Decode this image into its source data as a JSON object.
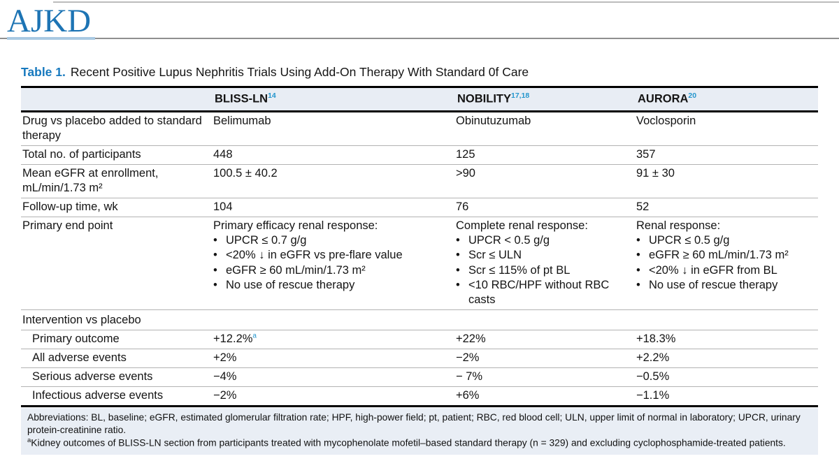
{
  "page": {
    "logo": "AJKD",
    "title_label": "Table 1.",
    "title_text": "Recent Positive Lupus Nephritis Trials Using Add-On Therapy With Standard 0f Care"
  },
  "table": {
    "columns": [
      {
        "text": "BLISS-LN",
        "sup": "14"
      },
      {
        "text": "NOBILITY",
        "sup": "17,18"
      },
      {
        "text": "AURORA",
        "sup": "20"
      }
    ],
    "rows": [
      {
        "type": "text",
        "label": "Drug vs placebo added to standard therapy",
        "cells": [
          {
            "text": "Belimumab"
          },
          {
            "text": "Obinutuzumab"
          },
          {
            "text": "Voclosporin"
          }
        ]
      },
      {
        "type": "text",
        "label": "Total no. of participants",
        "cells": [
          {
            "text": "448"
          },
          {
            "text": "125"
          },
          {
            "text": "357"
          }
        ]
      },
      {
        "type": "text",
        "label": "Mean eGFR at enrollment, mL/min/1.73 m²",
        "cells": [
          {
            "text": "100.5 ± 40.2"
          },
          {
            "text": ">90"
          },
          {
            "text": "91 ± 30"
          }
        ]
      },
      {
        "type": "text",
        "label": "Follow-up time, wk",
        "cells": [
          {
            "text": "104"
          },
          {
            "text": "76"
          },
          {
            "text": "52"
          }
        ]
      },
      {
        "type": "list",
        "label": "Primary end point",
        "cells": [
          {
            "intro": "Primary efficacy renal response:",
            "bullets": [
              "UPCR ≤ 0.7 g/g",
              "<20% ↓ in eGFR vs pre-flare value",
              "eGFR ≥ 60 mL/min/1.73 m²",
              "No use of rescue therapy"
            ]
          },
          {
            "intro": "Complete renal response:",
            "bullets": [
              "UPCR < 0.5 g/g",
              "Scr ≤ ULN",
              "Scr ≤ 115% of pt BL",
              "<10 RBC/HPF without RBC casts"
            ]
          },
          {
            "intro": "Renal response:",
            "bullets": [
              "UPCR ≤ 0.5 g/g",
              "eGFR ≥ 60 mL/min/1.73 m²",
              "<20% ↓ in eGFR from BL",
              "No use of rescue therapy"
            ]
          }
        ]
      },
      {
        "type": "section",
        "label": "Intervention vs placebo"
      },
      {
        "type": "text",
        "indent": true,
        "label": "Primary outcome",
        "cells": [
          {
            "text": "+12.2%",
            "sup": "a"
          },
          {
            "text": "+22%"
          },
          {
            "text": "+18.3%"
          }
        ]
      },
      {
        "type": "text",
        "indent": true,
        "label": "All adverse events",
        "cells": [
          {
            "text": "+2%"
          },
          {
            "text": "−2%"
          },
          {
            "text": "+2.2%"
          }
        ]
      },
      {
        "type": "text",
        "indent": true,
        "label": "Serious adverse events",
        "cells": [
          {
            "text": "−4%"
          },
          {
            "text": "− 7%"
          },
          {
            "text": "−0.5%"
          }
        ]
      },
      {
        "type": "text",
        "indent": true,
        "label": "Infectious adverse events",
        "cells": [
          {
            "text": "−2%"
          },
          {
            "text": "+6%"
          },
          {
            "text": "−1.1%"
          }
        ]
      }
    ]
  },
  "footnotes": {
    "abbreviations": "Abbreviations: BL, baseline; eGFR, estimated glomerular filtration rate; HPF, high-power field; pt, patient; RBC, red blood cell; ULN, upper limit of normal in laboratory; UPCR, urinary protein-creatinine ratio.",
    "note_a_sup": "a",
    "note_a_text": "Kidney outcomes of BLISS-LN section from participants treated with mycophenolate mofetil–based standard therapy (n = 329) and excluding cyclophosphamide-treated patients."
  },
  "colors": {
    "accent_blue": "#1779be",
    "reference_blue": "#2596cd",
    "header_row_bg": "#e8edf4",
    "footnote_bg": "#e9eef5"
  }
}
